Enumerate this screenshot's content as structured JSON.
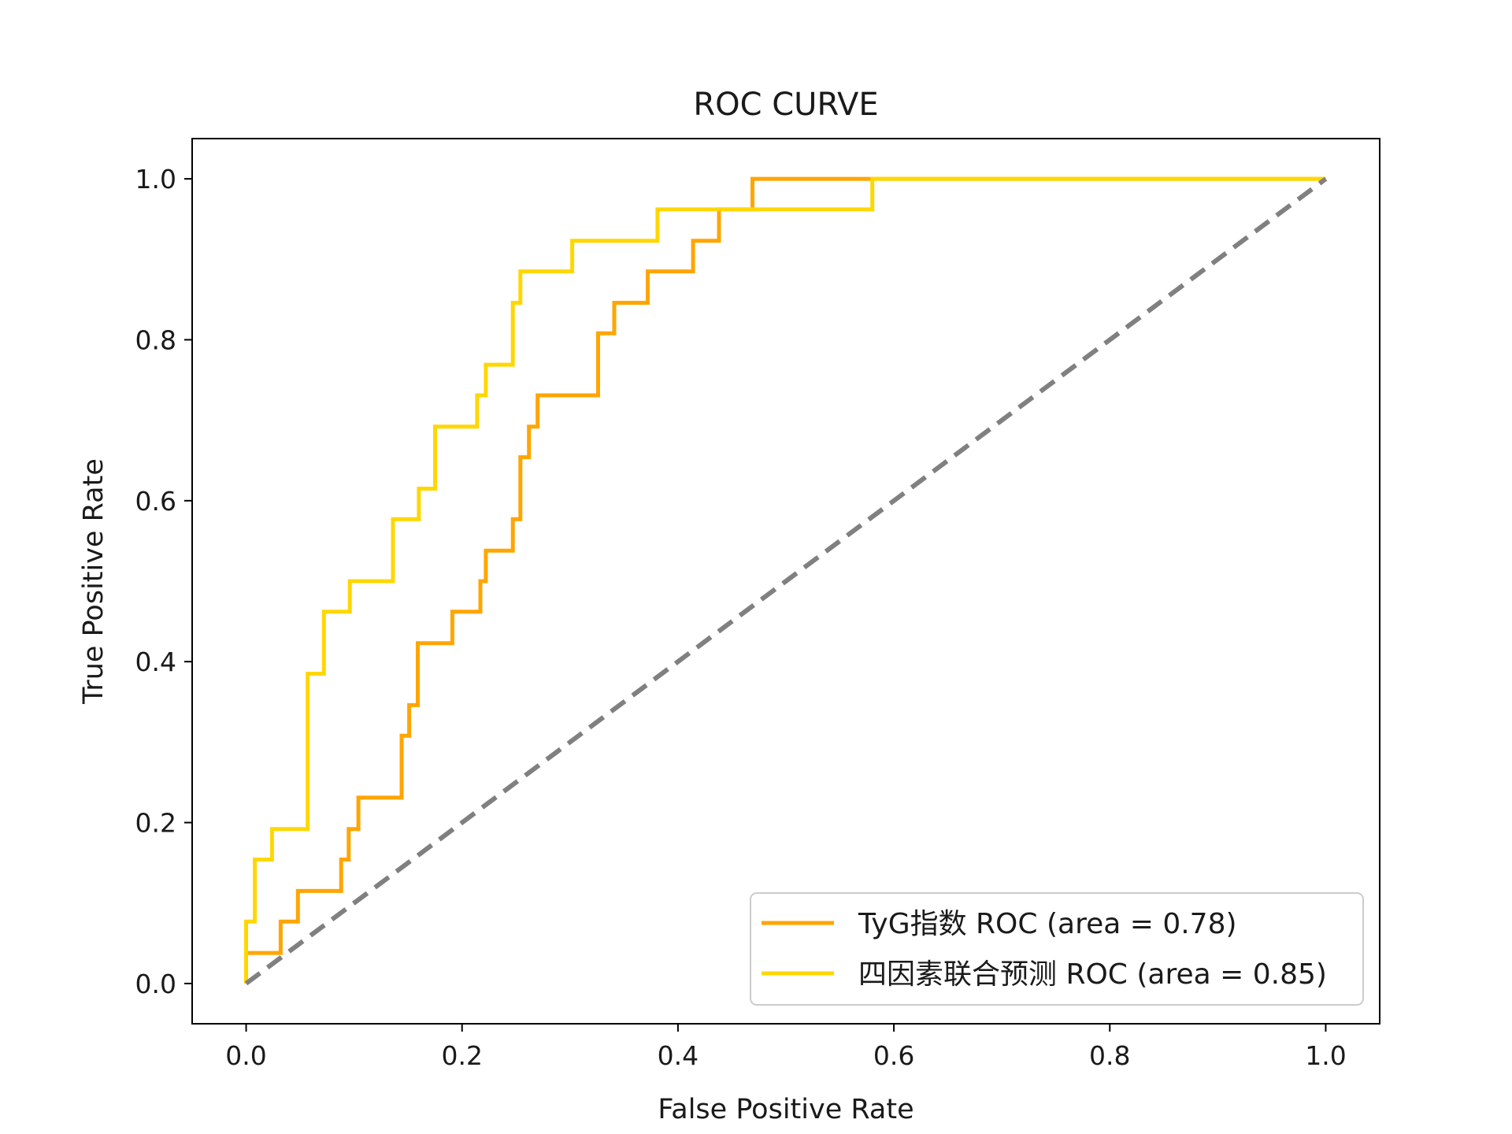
{
  "chart_data": {
    "type": "line",
    "title": "ROC CURVE",
    "xlabel": "False Positive Rate",
    "ylabel": "True Positive Rate",
    "xlim": [
      -0.05,
      1.05
    ],
    "ylim": [
      -0.05,
      1.05
    ],
    "xticks": [
      0.0,
      0.2,
      0.4,
      0.6,
      0.8,
      1.0
    ],
    "yticks": [
      0.0,
      0.2,
      0.4,
      0.6,
      0.8,
      1.0
    ],
    "xtick_labels": [
      "0.0",
      "0.2",
      "0.4",
      "0.6",
      "0.8",
      "1.0"
    ],
    "ytick_labels": [
      "0.0",
      "0.2",
      "0.4",
      "0.6",
      "0.8",
      "1.0"
    ],
    "grid": false,
    "legend_position": "lower-right",
    "series": [
      {
        "name": "TyG指数 ROC (area = 0.78)",
        "color": "#FFA500",
        "style": "step",
        "x": [
          0.0,
          0.0,
          0.032,
          0.032,
          0.048,
          0.048,
          0.088,
          0.088,
          0.095,
          0.095,
          0.104,
          0.104,
          0.144,
          0.144,
          0.151,
          0.151,
          0.159,
          0.159,
          0.191,
          0.191,
          0.217,
          0.217,
          0.222,
          0.222,
          0.247,
          0.247,
          0.254,
          0.254,
          0.262,
          0.262,
          0.27,
          0.27,
          0.326,
          0.326,
          0.341,
          0.341,
          0.372,
          0.372,
          0.414,
          0.414,
          0.438,
          0.438,
          0.469,
          0.469,
          0.58,
          0.58,
          1.0
        ],
        "y": [
          0.0,
          0.038,
          0.038,
          0.077,
          0.077,
          0.115,
          0.115,
          0.154,
          0.154,
          0.192,
          0.192,
          0.231,
          0.231,
          0.308,
          0.308,
          0.346,
          0.346,
          0.423,
          0.423,
          0.462,
          0.462,
          0.5,
          0.5,
          0.538,
          0.538,
          0.577,
          0.577,
          0.654,
          0.654,
          0.692,
          0.692,
          0.731,
          0.731,
          0.808,
          0.808,
          0.846,
          0.846,
          0.885,
          0.885,
          0.923,
          0.923,
          0.962,
          0.962,
          1.0,
          1.0,
          1.0,
          1.0
        ]
      },
      {
        "name": "四因素联合预测 ROC (area = 0.85)",
        "color": "#FFD700",
        "style": "step",
        "x": [
          0.0,
          0.0,
          0.008,
          0.008,
          0.024,
          0.024,
          0.057,
          0.057,
          0.072,
          0.072,
          0.096,
          0.096,
          0.136,
          0.136,
          0.16,
          0.16,
          0.175,
          0.175,
          0.214,
          0.214,
          0.222,
          0.222,
          0.247,
          0.247,
          0.254,
          0.254,
          0.302,
          0.302,
          0.381,
          0.381,
          0.58,
          0.58,
          1.0
        ],
        "y": [
          0.0,
          0.077,
          0.077,
          0.154,
          0.154,
          0.192,
          0.192,
          0.385,
          0.385,
          0.462,
          0.462,
          0.5,
          0.5,
          0.577,
          0.577,
          0.615,
          0.615,
          0.692,
          0.692,
          0.731,
          0.731,
          0.769,
          0.769,
          0.846,
          0.846,
          0.885,
          0.885,
          0.923,
          0.923,
          0.962,
          0.962,
          1.0,
          1.0
        ]
      },
      {
        "color": "#808080",
        "style": "dashed",
        "x": [
          0.0,
          1.0
        ],
        "y": [
          0.0,
          1.0
        ]
      }
    ]
  }
}
